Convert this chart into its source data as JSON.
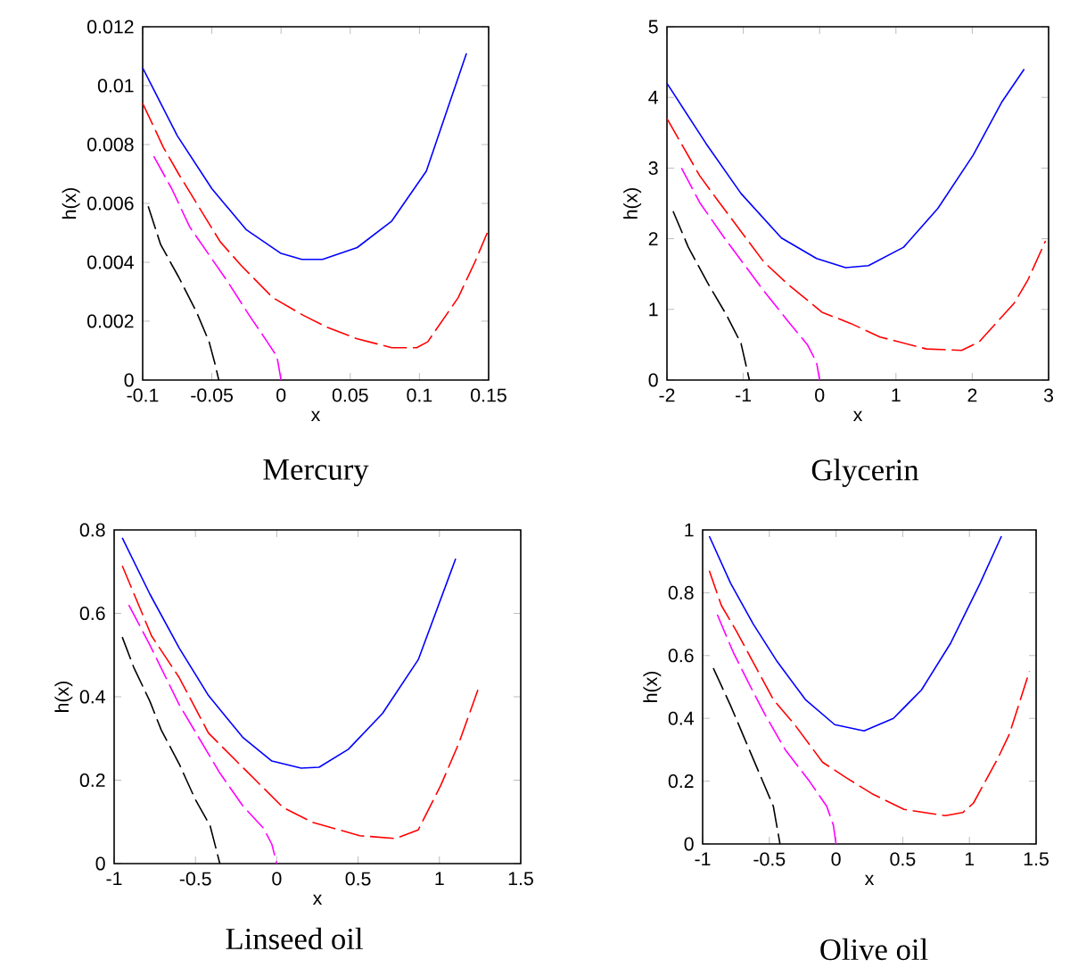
{
  "chart_data": [
    {
      "type": "line",
      "title": "Mercury",
      "xlabel": "x",
      "ylabel": "h(x)",
      "xlim": [
        -0.1,
        0.15
      ],
      "ylim": [
        0,
        0.012
      ],
      "xticks": [
        -0.1,
        -0.05,
        0,
        0.05,
        0.1,
        0.15
      ],
      "yticks": [
        0,
        0.002,
        0.004,
        0.006,
        0.008,
        0.01,
        0.012
      ],
      "series": [
        {
          "color": "#0000ff",
          "line_style": "solid",
          "x": [
            -0.1,
            -0.075,
            -0.05,
            -0.025,
            0,
            0.015,
            0.03,
            0.055,
            0.08,
            0.105,
            0.134
          ],
          "values": [
            0.0106,
            0.0083,
            0.0065,
            0.0051,
            0.0043,
            0.0041,
            0.0041,
            0.0045,
            0.0054,
            0.0071,
            0.0111
          ]
        },
        {
          "color": "#ff0000",
          "line_style": "dashed",
          "x": [
            -0.1,
            -0.085,
            -0.074,
            -0.044,
            -0.029,
            -0.006,
            0.016,
            0.033,
            0.055,
            0.08,
            0.098,
            0.106,
            0.128,
            0.14,
            0.149
          ],
          "values": [
            0.0094,
            0.0079,
            0.007,
            0.0047,
            0.0039,
            0.0028,
            0.0022,
            0.0018,
            0.0014,
            0.0011,
            0.0011,
            0.0013,
            0.0028,
            0.004,
            0.005
          ]
        },
        {
          "color": "#ff00ff",
          "line_style": "dashed",
          "x": [
            -0.092,
            -0.079,
            -0.066,
            -0.038,
            -0.023,
            -0.01,
            -0.003,
            0
          ],
          "values": [
            0.0076,
            0.0065,
            0.0052,
            0.0033,
            0.0022,
            0.0013,
            0.0008,
            0
          ]
        },
        {
          "color": "#000000",
          "line_style": "dashed",
          "x": [
            -0.096,
            -0.087,
            -0.074,
            -0.061,
            -0.052,
            -0.048,
            -0.045
          ],
          "values": [
            0.0059,
            0.0046,
            0.0035,
            0.0023,
            0.0013,
            0.0006,
            0
          ]
        }
      ]
    },
    {
      "type": "line",
      "title": "Glycerin",
      "xlabel": "x",
      "ylabel": "h(x)",
      "xlim": [
        -2,
        3
      ],
      "ylim": [
        0,
        5
      ],
      "xticks": [
        -2,
        -1,
        0,
        1,
        2,
        3
      ],
      "yticks": [
        0,
        1,
        2,
        3,
        4,
        5
      ],
      "series": [
        {
          "color": "#0000ff",
          "line_style": "solid",
          "x": [
            -2,
            -1.49,
            -1.03,
            -0.5,
            -0.04,
            0.34,
            0.64,
            1.1,
            1.55,
            2.01,
            2.39,
            2.68
          ],
          "values": [
            4.2,
            3.35,
            2.64,
            2.01,
            1.72,
            1.59,
            1.62,
            1.88,
            2.43,
            3.18,
            3.94,
            4.4
          ]
        },
        {
          "color": "#ff0000",
          "line_style": "dashed",
          "x": [
            -2,
            -1.57,
            -1.34,
            -0.73,
            -0.42,
            0.03,
            0.41,
            0.79,
            1.4,
            1.86,
            2.09,
            2.55,
            2.73,
            2.96
          ],
          "values": [
            3.7,
            2.89,
            2.55,
            1.67,
            1.36,
            0.96,
            0.8,
            0.61,
            0.44,
            0.42,
            0.54,
            1.09,
            1.42,
            1.97
          ]
        },
        {
          "color": "#ff00ff",
          "line_style": "dashed",
          "x": [
            -1.81,
            -1.57,
            -1.26,
            -0.73,
            -0.42,
            -0.16,
            -0.04,
            0
          ],
          "values": [
            3.0,
            2.51,
            2.03,
            1.26,
            0.84,
            0.5,
            0.25,
            0
          ]
        },
        {
          "color": "#000000",
          "line_style": "dashed",
          "x": [
            -1.92,
            -1.72,
            -1.47,
            -1.22,
            -1.03,
            -0.92
          ],
          "values": [
            2.39,
            1.88,
            1.38,
            0.92,
            0.52,
            0
          ]
        }
      ]
    },
    {
      "type": "line",
      "title": "Linseed oil",
      "xlabel": "x",
      "ylabel": "h(x)",
      "xlim": [
        -1,
        1.5
      ],
      "ylim": [
        0,
        0.8
      ],
      "xticks": [
        -1,
        -0.5,
        0,
        0.5,
        1,
        1.5
      ],
      "yticks": [
        0,
        0.2,
        0.4,
        0.6,
        0.8
      ],
      "series": [
        {
          "color": "#0000ff",
          "line_style": "solid",
          "x": [
            -0.95,
            -0.78,
            -0.6,
            -0.42,
            -0.21,
            -0.03,
            0.15,
            0.26,
            0.44,
            0.65,
            0.87,
            1.1
          ],
          "values": [
            0.781,
            0.646,
            0.517,
            0.403,
            0.303,
            0.246,
            0.229,
            0.231,
            0.274,
            0.36,
            0.489,
            0.731
          ]
        },
        {
          "color": "#ff0000",
          "line_style": "dashed",
          "x": [
            -0.95,
            -0.77,
            -0.6,
            -0.42,
            -0.21,
            0.04,
            0.22,
            0.51,
            0.73,
            0.87,
            1.01,
            1.12,
            1.24
          ],
          "values": [
            0.714,
            0.546,
            0.446,
            0.313,
            0.231,
            0.134,
            0.099,
            0.067,
            0.06,
            0.081,
            0.189,
            0.289,
            0.42
          ]
        },
        {
          "color": "#ff00ff",
          "line_style": "dashed",
          "x": [
            -0.91,
            -0.78,
            -0.6,
            -0.35,
            -0.21,
            -0.08,
            -0.03,
            0
          ],
          "values": [
            0.62,
            0.524,
            0.381,
            0.217,
            0.139,
            0.084,
            0.046,
            0
          ]
        },
        {
          "color": "#000000",
          "line_style": "dashed",
          "x": [
            -0.95,
            -0.88,
            -0.78,
            -0.71,
            -0.6,
            -0.5,
            -0.41,
            -0.35
          ],
          "values": [
            0.543,
            0.471,
            0.389,
            0.32,
            0.239,
            0.153,
            0.091,
            0
          ]
        }
      ]
    },
    {
      "type": "line",
      "title": "Olive oil",
      "xlabel": "x",
      "ylabel": "h(x)",
      "xlim": [
        -1,
        1.5
      ],
      "ylim": [
        0,
        1
      ],
      "xticks": [
        -1,
        -0.5,
        0,
        0.5,
        1,
        1.5
      ],
      "yticks": [
        0,
        0.2,
        0.4,
        0.6,
        0.8,
        1
      ],
      "series": [
        {
          "color": "#0000ff",
          "line_style": "solid",
          "x": [
            -0.95,
            -0.79,
            -0.62,
            -0.44,
            -0.23,
            -0.01,
            0.21,
            0.43,
            0.64,
            0.86,
            1.08,
            1.24
          ],
          "values": [
            0.98,
            0.83,
            0.7,
            0.58,
            0.46,
            0.38,
            0.36,
            0.4,
            0.49,
            0.64,
            0.83,
            0.98
          ]
        },
        {
          "color": "#ff0000",
          "line_style": "dashed",
          "x": [
            -0.95,
            -0.86,
            -0.75,
            -0.47,
            -0.31,
            -0.1,
            0.08,
            0.27,
            0.51,
            0.82,
            0.95,
            1.03,
            1.21,
            1.3,
            1.45
          ],
          "values": [
            0.87,
            0.76,
            0.68,
            0.46,
            0.38,
            0.26,
            0.21,
            0.16,
            0.11,
            0.09,
            0.1,
            0.13,
            0.27,
            0.35,
            0.55
          ]
        },
        {
          "color": "#ff00ff",
          "line_style": "dashed",
          "x": [
            -0.89,
            -0.77,
            -0.64,
            -0.53,
            -0.38,
            -0.2,
            -0.07,
            -0.02,
            0
          ],
          "values": [
            0.73,
            0.61,
            0.5,
            0.41,
            0.3,
            0.2,
            0.12,
            0.06,
            0
          ]
        },
        {
          "color": "#000000",
          "line_style": "dashed",
          "x": [
            -0.92,
            -0.79,
            -0.68,
            -0.57,
            -0.47,
            -0.42
          ],
          "values": [
            0.56,
            0.44,
            0.33,
            0.22,
            0.12,
            0
          ]
        }
      ]
    }
  ]
}
